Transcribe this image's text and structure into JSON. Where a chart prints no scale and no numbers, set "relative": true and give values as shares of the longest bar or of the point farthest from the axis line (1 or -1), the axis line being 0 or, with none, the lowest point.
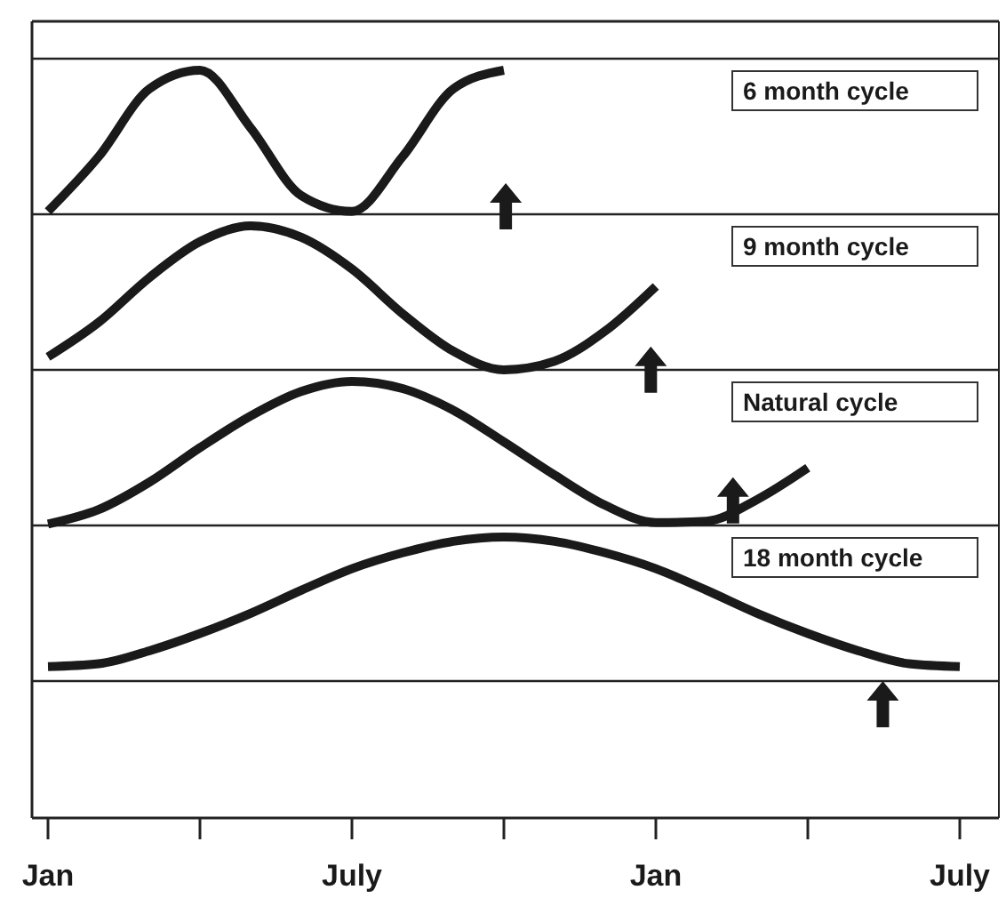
{
  "chart_data": [
    {
      "type": "line",
      "relative": true,
      "tick_labels": false,
      "line_style": "solid",
      "categories": [
        null,
        null,
        null,
        null,
        null,
        null,
        null,
        null,
        null,
        null,
        null,
        null,
        null,
        null,
        null,
        null,
        null,
        null,
        null
      ],
      "series": [
        {
          "name": "6 month cycle",
          "color": "#1a1a1a",
          "values": [
            0.02,
            0.4,
            0.87,
            1,
            0.6,
            0.13,
            0.02,
            0.4,
            0.87,
            1,
            null,
            null,
            null,
            null,
            null,
            null,
            null,
            null,
            null
          ]
        }
      ]
    },
    {
      "type": "line",
      "relative": true,
      "tick_labels": false,
      "line_style": "solid",
      "categories": [
        null,
        null,
        null,
        null,
        null,
        null,
        null,
        null,
        null,
        null,
        null,
        null,
        null,
        null,
        null,
        null,
        null,
        null,
        null
      ],
      "series": [
        {
          "name": "9 month cycle",
          "color": "#1a1a1a",
          "values": [
            0.09,
            0.33,
            0.64,
            0.89,
            1,
            0.92,
            0.7,
            0.39,
            0.13,
            0,
            0.06,
            0.27,
            0.58,
            null,
            null,
            null,
            null,
            null,
            null
          ]
        }
      ]
    },
    {
      "type": "line",
      "relative": true,
      "tick_labels": false,
      "line_style": "solid",
      "categories": [
        null,
        null,
        null,
        null,
        null,
        null,
        null,
        null,
        null,
        null,
        null,
        null,
        null,
        null,
        null,
        null,
        null,
        null,
        null
      ],
      "series": [
        {
          "name": "Natural cycle",
          "color": "#1a1a1a",
          "values": [
            0.01,
            0.11,
            0.3,
            0.54,
            0.76,
            0.93,
            1,
            0.95,
            0.8,
            0.58,
            0.35,
            0.14,
            0.02,
            0.03,
            0.18,
            0.4,
            null,
            null,
            null
          ]
        }
      ]
    },
    {
      "type": "line",
      "relative": true,
      "tick_labels": "x",
      "line_style": "solid",
      "categories": [
        "Jan",
        null,
        null,
        null,
        null,
        null,
        "July",
        null,
        null,
        null,
        null,
        null,
        "Jan",
        null,
        null,
        null,
        null,
        null,
        "July"
      ],
      "series": [
        {
          "name": "18 month cycle",
          "color": "#1a1a1a",
          "values": [
            0.1,
            0.12,
            0.21,
            0.33,
            0.47,
            0.63,
            0.78,
            0.89,
            0.97,
            1,
            0.97,
            0.89,
            0.78,
            0.63,
            0.47,
            0.33,
            0.21,
            0.12,
            0.1
          ]
        }
      ]
    }
  ]
}
